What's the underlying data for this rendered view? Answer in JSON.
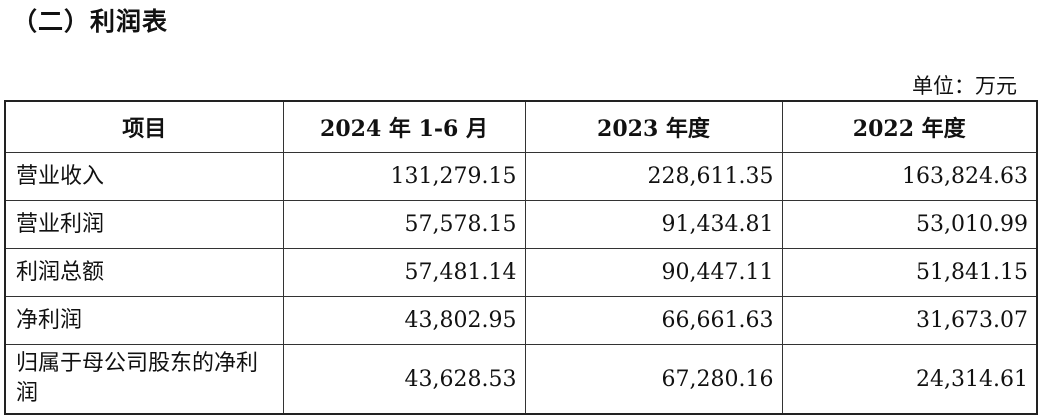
{
  "header": {
    "title": "（二）利润表",
    "unit": "单位：万元"
  },
  "table": {
    "columns": [
      "项目",
      "2024 年 1-6 月",
      "2023 年度",
      "2022 年度"
    ],
    "rows": [
      [
        "营业收入",
        "131,279.15",
        "228,611.35",
        "163,824.63"
      ],
      [
        "营业利润",
        "57,578.15",
        "91,434.81",
        "53,010.99"
      ],
      [
        "利润总额",
        "57,481.14",
        "90,447.11",
        "51,841.15"
      ],
      [
        "净利润",
        "43,802.95",
        "66,661.63",
        "31,673.07"
      ],
      [
        "归属于母公司股东的净利润",
        "43,628.53",
        "67,280.16",
        "24,314.61"
      ]
    ]
  }
}
